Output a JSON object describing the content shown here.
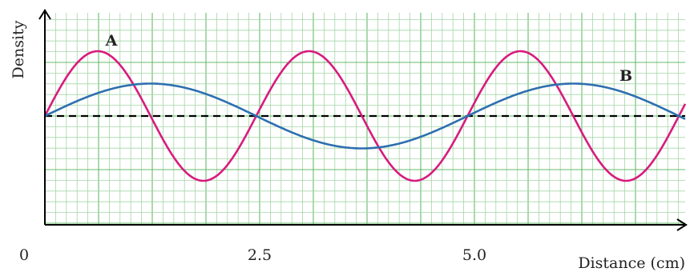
{
  "chart_data": {
    "type": "line",
    "title": "",
    "xlabel": "Distance (cm)",
    "ylabel": "Density",
    "origin_label": "0",
    "x_ticks": [
      {
        "value": 2.5,
        "label": "2.5"
      },
      {
        "value": 5.0,
        "label": "5.0"
      }
    ],
    "xlim": [
      0,
      7.4
    ],
    "ylim": [
      -2,
      2
    ],
    "grid": true,
    "baseline": 0,
    "series": [
      {
        "name": "A",
        "color": "#d81b7f",
        "amplitude": 1.2,
        "wavelength_cm": 2.46,
        "x": [
          0,
          0.62,
          1.23,
          1.85,
          2.46,
          3.08,
          3.69,
          4.31,
          4.92,
          5.54,
          6.15,
          6.77,
          7.38
        ],
        "y": [
          0,
          1.2,
          0,
          -1.2,
          0,
          1.2,
          0,
          -1.2,
          0,
          1.2,
          0,
          -1.2,
          0
        ]
      },
      {
        "name": "B",
        "color": "#2e6fb0",
        "amplitude": 0.6,
        "wavelength_cm": 4.92,
        "x": [
          0,
          1.23,
          2.46,
          3.69,
          4.92,
          6.15,
          7.38
        ],
        "y": [
          0,
          0.6,
          0,
          -0.6,
          0,
          0.6,
          0
        ]
      }
    ],
    "colors": {
      "grid_minor": "#a5d6a7",
      "grid_major": "#66bb6a",
      "axis": "#000000",
      "baseline": "#000000"
    }
  }
}
